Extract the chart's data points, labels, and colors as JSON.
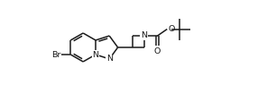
{
  "bg_color": "#ffffff",
  "line_color": "#1a1a1a",
  "line_width": 1.1,
  "font_size": 6.8,
  "text_color": "#1a1a1a",
  "figsize": [
    2.96,
    1.04
  ],
  "dpi": 100,
  "xlim": [
    0,
    296
  ],
  "ylim": [
    0,
    104
  ]
}
